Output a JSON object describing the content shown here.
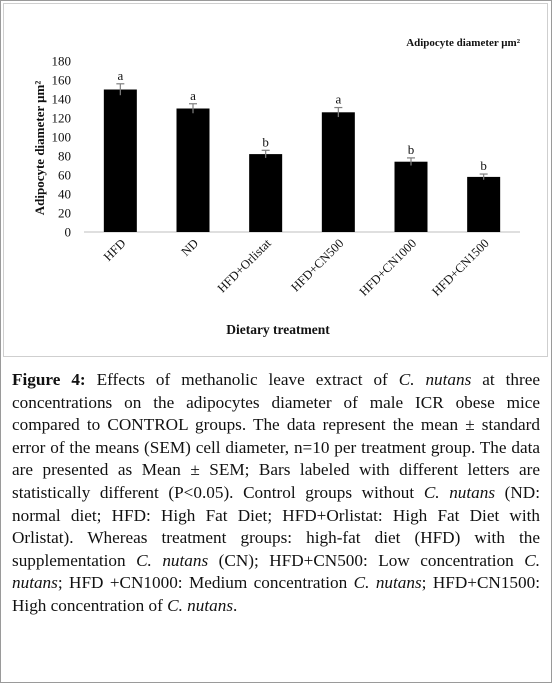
{
  "chart_data": {
    "type": "bar",
    "title": "",
    "legend_label": "Adipocyte  diameter μm²",
    "xlabel": "Dietary treatment",
    "ylabel": "Adipocyte diameter μm²",
    "ylim": [
      0,
      180
    ],
    "yticks": [
      0,
      20,
      40,
      60,
      80,
      100,
      120,
      140,
      160,
      180
    ],
    "categories": [
      "HFD",
      "ND",
      "HFD+Orlistat",
      "HFD+CN500",
      "HFD+CN1000",
      "HFD+CN1500"
    ],
    "values": [
      150,
      130,
      82,
      126,
      74,
      58
    ],
    "errors": [
      6,
      5,
      4,
      5,
      4,
      3
    ],
    "letters": [
      "a",
      "a",
      "b",
      "a",
      "b",
      "b"
    ],
    "bar_color": "#000000",
    "grid": false
  },
  "caption": {
    "label": "Figure 4:",
    "segments": [
      {
        "t": " Effects of methanolic leave extract of ",
        "i": false
      },
      {
        "t": "C. nutans",
        "i": true
      },
      {
        "t": " at three concentrations on the adipocytes diameter of male ICR obese mice compared to CONTROL groups. The data represent the mean ± standard error of the means (SEM) cell diameter, n=10 per treatment group. The data are presented as Mean ± SEM; Bars labeled with different letters are statistically different (P<0.05). Control groups without ",
        "i": false
      },
      {
        "t": "C. nutans",
        "i": true
      },
      {
        "t": " (ND: normal diet; HFD: High Fat Diet; HFD+Orlistat: High Fat Diet with Orlistat). Whereas treatment groups: high-fat diet (HFD) with the supplementation ",
        "i": false
      },
      {
        "t": "C. nutans",
        "i": true
      },
      {
        "t": " (CN); HFD+CN500: Low concentration ",
        "i": false
      },
      {
        "t": "C. nutans",
        "i": true
      },
      {
        "t": "; HFD +CN1000: Medium concentration ",
        "i": false
      },
      {
        "t": "C. nutans",
        "i": true
      },
      {
        "t": "; HFD+CN1500: High concentration of ",
        "i": false
      },
      {
        "t": "C. nutans",
        "i": true
      },
      {
        "t": ".",
        "i": false
      }
    ]
  }
}
